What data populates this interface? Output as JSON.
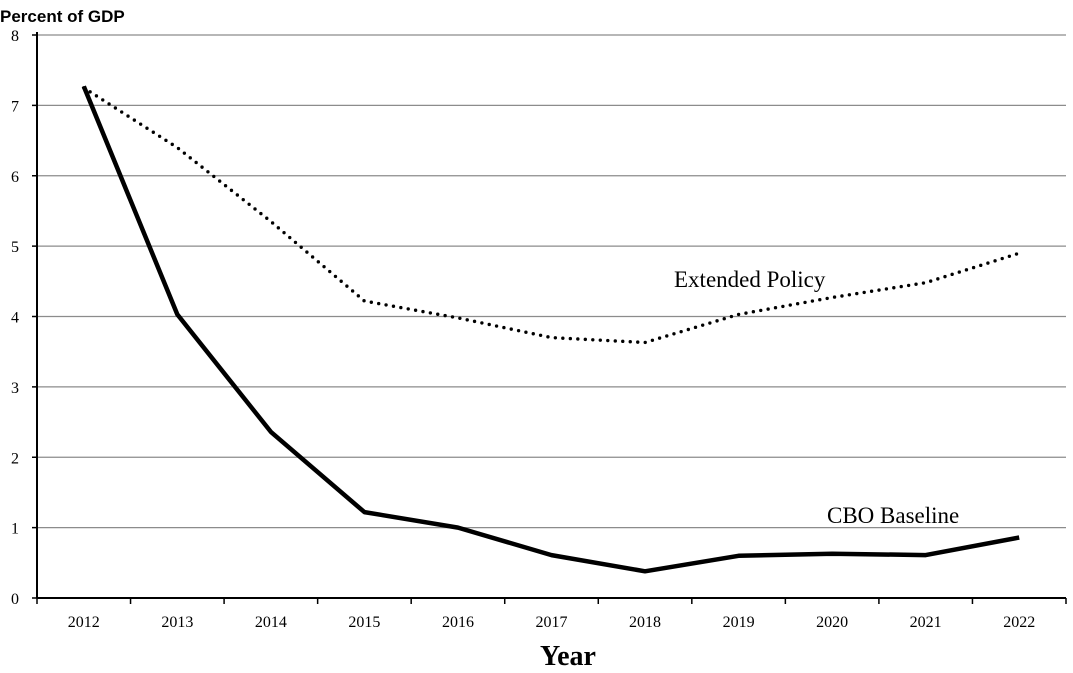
{
  "chart_data": {
    "type": "line",
    "ylabel": "Percent of GDP",
    "xlabel": "Year",
    "x": [
      "2012",
      "2013",
      "2014",
      "2015",
      "2016",
      "2017",
      "2018",
      "2019",
      "2020",
      "2021",
      "2022"
    ],
    "ylim": [
      0,
      8
    ],
    "yticks": [
      "0",
      "1",
      "2",
      "3",
      "4",
      "5",
      "6",
      "7",
      "8"
    ],
    "grid": true,
    "series": [
      {
        "name": "Extended Policy",
        "style": "dotted",
        "color": "#000000",
        "values": [
          7.25,
          6.4,
          5.35,
          4.22,
          3.98,
          3.7,
          3.63,
          4.03,
          4.27,
          4.48,
          4.9
        ]
      },
      {
        "name": "CBO Baseline",
        "style": "solid",
        "color": "#000000",
        "values": [
          7.27,
          4.03,
          2.36,
          1.22,
          1.0,
          0.61,
          0.38,
          0.6,
          0.63,
          0.61,
          0.86
        ]
      }
    ]
  }
}
